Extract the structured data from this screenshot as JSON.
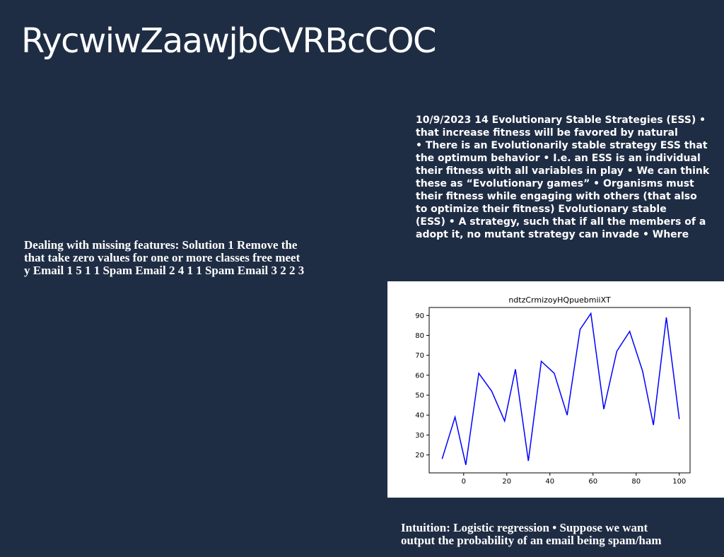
{
  "slide": {
    "title": "RycwiwZaawjbCVRBcCOC",
    "ess_text": [
      "10/9/2023 14 Evolutionary Stable Strategies (ESS) •",
      "that increase fitness will be favored by natural",
      "• There is an Evolutionarily stable strategy ESS that",
      "the optimum behavior • I.e. an ESS is an individual",
      "their fitness with all variables in play • We can think",
      "these as “Evolutionary games” • Organisms must",
      "their fitness while engaging with others (that also",
      "to optimize their fitness) Evolutionary stable",
      "(ESS) • A strategy, such that if all the members of a",
      "adopt it, no mutant strategy can invade • Where"
    ],
    "missing_text": [
      "Dealing with missing features: Solution 1 Remove the",
      "that take zero values for one or more classes free meet",
      "y Email 1 5 1 1 Spam Email 2 4 1 1 Spam Email 3 2 2 3"
    ],
    "intuition_text": [
      "Intuition: Logistic regression • Suppose we want",
      "output the probability of an email being spam/ham"
    ]
  },
  "chart_data": {
    "type": "line",
    "title": "ndtzCrmizoyHQpuebmiiXT",
    "xlabel": "",
    "ylabel": "",
    "x": [
      -10,
      -4,
      1,
      7,
      13,
      19,
      24,
      30,
      36,
      42,
      48,
      54,
      59,
      65,
      71,
      77,
      83,
      88,
      94,
      100
    ],
    "series": [
      {
        "values": [
          18,
          39,
          15,
          61,
          52,
          37,
          63,
          17,
          67,
          61,
          40,
          83,
          91,
          43,
          72,
          82,
          62,
          35,
          89,
          38
        ],
        "color": "#0000ff"
      }
    ],
    "xlim": [
      -16,
      105
    ],
    "ylim": [
      11,
      94
    ],
    "xticks": [
      0,
      20,
      40,
      60,
      80,
      100
    ],
    "yticks": [
      20,
      30,
      40,
      50,
      60,
      70,
      80,
      90
    ],
    "grid": false
  }
}
